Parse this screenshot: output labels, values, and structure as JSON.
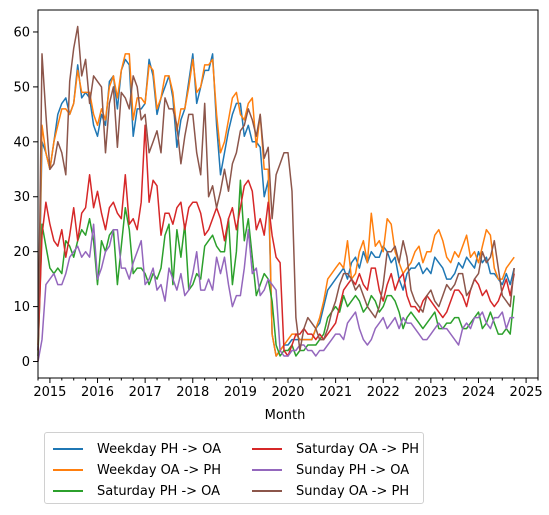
{
  "chart_data": {
    "type": "line",
    "title": "",
    "xlabel": "Month",
    "ylabel": "",
    "ylim": [
      -3,
      64
    ],
    "xlim": [
      "2014-10",
      "2025-04"
    ],
    "x_tick_labels": [
      "2015",
      "2016",
      "2017",
      "2018",
      "2019",
      "2020",
      "2021",
      "2022",
      "2023",
      "2024",
      "2025"
    ],
    "y_tick_labels": [
      "0",
      "10",
      "20",
      "30",
      "40",
      "50",
      "60"
    ],
    "y_ticks": [
      0,
      10,
      20,
      30,
      40,
      50,
      60
    ],
    "grid": false,
    "legend_placement": "below",
    "start_month": "2014-10",
    "series": [
      {
        "name": "Weekday PH -> OA",
        "color": "#1f77b4",
        "values": [
          2,
          40,
          38,
          35,
          40,
          45,
          47,
          48,
          45,
          47,
          54,
          48,
          49,
          48,
          43,
          41,
          45,
          43,
          51,
          52,
          46,
          53,
          55,
          54,
          41,
          46,
          46,
          47,
          55,
          52,
          45,
          48,
          50,
          52,
          48,
          39,
          44,
          46,
          51,
          56,
          47,
          50,
          53,
          53,
          56,
          43,
          34,
          38,
          42,
          45,
          47,
          47,
          41,
          43,
          40,
          40,
          39,
          30,
          33,
          5,
          1,
          2,
          3,
          3,
          4,
          4,
          4,
          4,
          4,
          4,
          6,
          7,
          10,
          13,
          14,
          15,
          16,
          17,
          15,
          18,
          19,
          17,
          20,
          18,
          20,
          19,
          19,
          21,
          20,
          18,
          19,
          15,
          13,
          16,
          17,
          17,
          18,
          16,
          17,
          16,
          19,
          18,
          17,
          15,
          15,
          16,
          18,
          17,
          19,
          18,
          17,
          20,
          18,
          19,
          16,
          16,
          15,
          14,
          16,
          14,
          17
        ]
      },
      {
        "name": "Weekday OA -> PH",
        "color": "#ff7f0e",
        "values": [
          3,
          43,
          38,
          35,
          40,
          43,
          46,
          46,
          45,
          47,
          53,
          49,
          49,
          49,
          45,
          43,
          46,
          44,
          50,
          52,
          48,
          53,
          56,
          56,
          44,
          48,
          48,
          47,
          54,
          53,
          46,
          48,
          52,
          52,
          49,
          42,
          46,
          46,
          50,
          55,
          49,
          50,
          54,
          54,
          55,
          45,
          38,
          40,
          44,
          48,
          49,
          45,
          44,
          47,
          48,
          39,
          45,
          35,
          35,
          5,
          1,
          2,
          3,
          4,
          5,
          5,
          4,
          4,
          4,
          4,
          6,
          8,
          11,
          15,
          16,
          17,
          18,
          17,
          22,
          15,
          16,
          20,
          22,
          18,
          27,
          21,
          22,
          20,
          26,
          25,
          20,
          18,
          16,
          17,
          18,
          20,
          21,
          18,
          20,
          20,
          23,
          24,
          22,
          19,
          18,
          20,
          19,
          21,
          23,
          19,
          20,
          18,
          21,
          24,
          23,
          17,
          15,
          15,
          17,
          18,
          19
        ]
      },
      {
        "name": "Saturday PH -> OA",
        "color": "#2ca02c",
        "values": [
          1,
          25,
          21,
          17,
          16,
          17,
          16,
          22,
          21,
          19,
          22,
          24,
          23,
          26,
          22,
          14,
          22,
          20,
          23,
          24,
          14,
          21,
          28,
          24,
          16,
          17,
          17,
          16,
          14,
          16,
          15,
          17,
          23,
          25,
          14,
          24,
          19,
          25,
          13,
          14,
          16,
          15,
          21,
          22,
          23,
          21,
          20,
          20,
          26,
          14,
          20,
          33,
          22,
          26,
          19,
          12,
          14,
          16,
          15,
          11,
          3,
          1,
          2,
          2,
          3,
          1,
          2,
          2,
          3,
          3,
          3,
          4,
          5,
          8,
          9,
          10,
          9,
          12,
          10,
          11,
          12,
          11,
          9,
          10,
          12,
          11,
          9,
          10,
          12,
          12,
          11,
          9,
          6,
          8,
          9,
          8,
          7,
          6,
          7,
          8,
          9,
          6,
          6,
          7,
          7,
          8,
          8,
          6,
          6,
          7,
          8,
          9,
          6,
          7,
          9,
          7,
          5,
          5,
          6,
          5,
          12
        ]
      },
      {
        "name": "Saturday OA -> PH",
        "color": "#d62728",
        "values": [
          2,
          23,
          29,
          25,
          22,
          21,
          24,
          19,
          23,
          28,
          22,
          27,
          28,
          34,
          28,
          31,
          27,
          24,
          28,
          29,
          27,
          26,
          34,
          25,
          26,
          24,
          29,
          43,
          29,
          33,
          32,
          23,
          27,
          27,
          25,
          28,
          29,
          24,
          28,
          29,
          29,
          27,
          23,
          24,
          26,
          28,
          26,
          22,
          26,
          28,
          24,
          28,
          32,
          33,
          31,
          24,
          26,
          23,
          29,
          23,
          19,
          18,
          2,
          1,
          3,
          5,
          5,
          6,
          5,
          5,
          4,
          5,
          4,
          5,
          6,
          7,
          10,
          13,
          14,
          15,
          14,
          16,
          14,
          13,
          17,
          17,
          13,
          11,
          14,
          16,
          13,
          15,
          16,
          12,
          10,
          10,
          9,
          11,
          12,
          11,
          10,
          9,
          8,
          9,
          11,
          13,
          13,
          12,
          10,
          13,
          15,
          14,
          12,
          13,
          11,
          10,
          11,
          13,
          15,
          12,
          16
        ]
      },
      {
        "name": "Sunday PH -> OA",
        "color": "#9467bd",
        "values": [
          0,
          4,
          14,
          15,
          16,
          14,
          14,
          16,
          19,
          20,
          21,
          19,
          20,
          19,
          25,
          15,
          17,
          20,
          21,
          24,
          24,
          17,
          17,
          15,
          18,
          20,
          22,
          14,
          15,
          17,
          13,
          14,
          11,
          17,
          15,
          13,
          16,
          12,
          13,
          16,
          20,
          13,
          13,
          15,
          13,
          19,
          16,
          19,
          14,
          10,
          12,
          12,
          17,
          24,
          16,
          17,
          12,
          13,
          15,
          14,
          13,
          2,
          1,
          1,
          2,
          2,
          3,
          3,
          2,
          2,
          1,
          2,
          2,
          3,
          4,
          5,
          5,
          4,
          7,
          8,
          9,
          6,
          4,
          3,
          4,
          6,
          7,
          8,
          6,
          7,
          8,
          6,
          8,
          7,
          7,
          6,
          5,
          4,
          4,
          5,
          6,
          7,
          6,
          6,
          5,
          4,
          3,
          6,
          7,
          6,
          8,
          8,
          9,
          7,
          6,
          8,
          8,
          9,
          6,
          8,
          8
        ]
      },
      {
        "name": "Sunday OA -> PH",
        "color": "#8c564b",
        "values": [
          0,
          56,
          45,
          35,
          36,
          40,
          38,
          34,
          51,
          57,
          61,
          52,
          55,
          47,
          52,
          51,
          50,
          38,
          47,
          50,
          39,
          49,
          48,
          46,
          52,
          50,
          44,
          45,
          38,
          40,
          42,
          38,
          48,
          46,
          46,
          43,
          36,
          41,
          45,
          45,
          38,
          34,
          47,
          30,
          32,
          28,
          31,
          35,
          31,
          36,
          38,
          42,
          43,
          46,
          44,
          41,
          45,
          37,
          39,
          26,
          34,
          36,
          38,
          38,
          31,
          8,
          2,
          6,
          8,
          7,
          6,
          4,
          4,
          6,
          9,
          11,
          14,
          16,
          16,
          15,
          13,
          14,
          12,
          10,
          9,
          8,
          10,
          14,
          20,
          20,
          21,
          18,
          22,
          19,
          13,
          11,
          10,
          9,
          12,
          13,
          11,
          10,
          12,
          14,
          13,
          14,
          16,
          16,
          12,
          13,
          15,
          16,
          20,
          18,
          19,
          22,
          17,
          12,
          11,
          10,
          17
        ]
      }
    ]
  }
}
